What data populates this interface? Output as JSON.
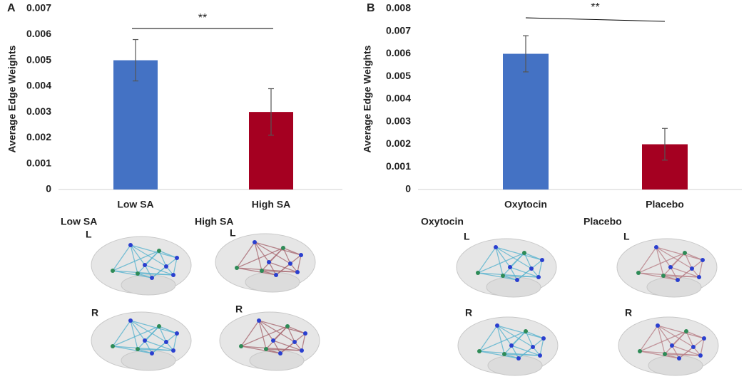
{
  "chart_data": [
    {
      "type": "bar",
      "panel": "A",
      "ylabel": "Average Edge Weights",
      "categories": [
        "Low SA",
        "High SA"
      ],
      "values": [
        0.005,
        0.003
      ],
      "errors": [
        0.0008,
        0.0009
      ],
      "colors": [
        "#4472c4",
        "#a50021"
      ],
      "ylim": [
        0,
        0.007
      ],
      "yticks": [
        0,
        0.001,
        0.002,
        0.003,
        0.004,
        0.005,
        0.006,
        0.007
      ],
      "significance": "**"
    },
    {
      "type": "bar",
      "panel": "B",
      "ylabel": "Average Edge Weights",
      "categories": [
        "Oxytocin",
        "Placebo"
      ],
      "values": [
        0.006,
        0.002
      ],
      "errors": [
        0.0008,
        0.0007
      ],
      "colors": [
        "#4472c4",
        "#a50021"
      ],
      "ylim": [
        0,
        0.008
      ],
      "yticks": [
        0,
        0.001,
        0.002,
        0.003,
        0.004,
        0.005,
        0.006,
        0.007,
        0.008
      ],
      "significance": "**"
    }
  ],
  "brain_panels": [
    {
      "title": "Low SA",
      "views": [
        "L",
        "R"
      ],
      "edge_color": "#5ab4cf"
    },
    {
      "title": "High SA",
      "views": [
        "L",
        "R"
      ],
      "edge_color": "#a86a72"
    },
    {
      "title": "Oxytocin",
      "views": [
        "L",
        "R"
      ],
      "edge_color": "#5ab4cf"
    },
    {
      "title": "Placebo",
      "views": [
        "L",
        "R"
      ],
      "edge_color": "#b88088"
    }
  ]
}
